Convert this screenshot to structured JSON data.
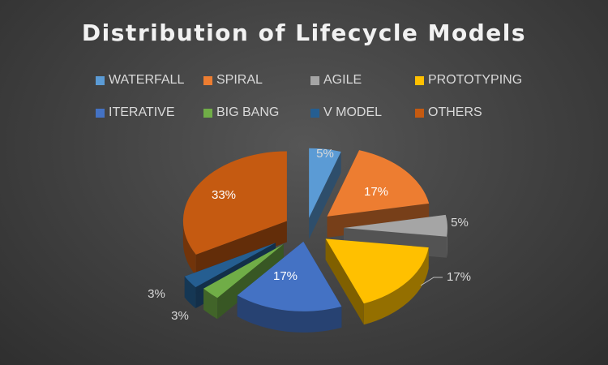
{
  "chart_data": {
    "type": "pie",
    "title": "Distribution of Lifecycle Models",
    "legend_position": "top",
    "series": [
      {
        "name": "WATERFALL",
        "value": 5,
        "label": "5%",
        "color": "#5b9bd5"
      },
      {
        "name": "SPIRAL",
        "value": 17,
        "label": "17%",
        "color": "#ed7d31"
      },
      {
        "name": "AGILE",
        "value": 5,
        "label": "5%",
        "color": "#a5a5a5"
      },
      {
        "name": "PROTOTYPING",
        "value": 17,
        "label": "17%",
        "color": "#ffc000"
      },
      {
        "name": "ITERATIVE",
        "value": 17,
        "label": "17%",
        "color": "#4472c4"
      },
      {
        "name": "BIG BANG",
        "value": 3,
        "label": "3%",
        "color": "#70ad47"
      },
      {
        "name": "V MODEL",
        "value": 3,
        "label": "3%",
        "color": "#255e91"
      },
      {
        "name": "OTHERS",
        "value": 33,
        "label": "33%",
        "color": "#c55a11"
      }
    ]
  }
}
